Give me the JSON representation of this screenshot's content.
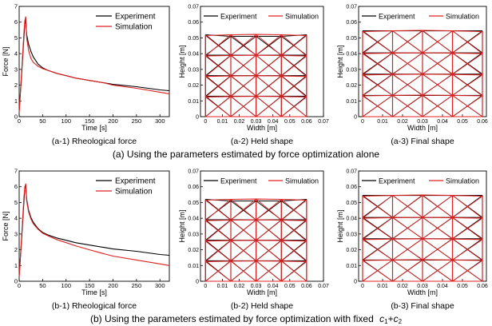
{
  "captions": {
    "row_a": "(a) Using the parameters estimated by force optimization alone",
    "row_b_text": "(b) Using the parameters estimated by force optimization with fixed",
    "row_b_c": "c",
    "row_b_sub1": "1",
    "row_b_plus": "+",
    "row_b_c2": "c",
    "row_b_sub2": "2"
  },
  "chart_data": [
    {
      "id": "a1",
      "type": "line",
      "caption": "(a-1) Rheological force",
      "xlabel": "Time [s]",
      "ylabel": "Force [N]",
      "xlim": [
        0,
        320
      ],
      "ylim": [
        0,
        7
      ],
      "xticks": [
        0,
        50,
        100,
        150,
        200,
        250,
        300
      ],
      "yticks": [
        0,
        1,
        2,
        3,
        4,
        5,
        6,
        7
      ],
      "legend": "top-right",
      "series": [
        {
          "name": "Experiment",
          "color": "#000000",
          "x": [
            0,
            6,
            10,
            12,
            14,
            16,
            20,
            25,
            30,
            40,
            50,
            60,
            80,
            100,
            120,
            150,
            180,
            200,
            250,
            300,
            320
          ],
          "y": [
            0.3,
            3.0,
            5.0,
            5.9,
            6.15,
            5.2,
            4.6,
            4.15,
            3.8,
            3.35,
            3.1,
            2.95,
            2.75,
            2.6,
            2.45,
            2.3,
            2.15,
            2.05,
            1.9,
            1.7,
            1.65
          ]
        },
        {
          "name": "Simulation",
          "color": "#e02020",
          "x": [
            0,
            6,
            10,
            12,
            14,
            16,
            20,
            25,
            30,
            40,
            50,
            60,
            80,
            100,
            120,
            150,
            180,
            200,
            250,
            300,
            320
          ],
          "y": [
            0.3,
            3.2,
            5.3,
            6.1,
            6.35,
            5.0,
            4.2,
            3.7,
            3.45,
            3.2,
            3.05,
            2.95,
            2.75,
            2.6,
            2.45,
            2.3,
            2.15,
            2.0,
            1.8,
            1.55,
            1.45
          ]
        }
      ]
    },
    {
      "id": "a2",
      "type": "line",
      "caption": "(a-2) Held shape",
      "xlabel": "Width [m]",
      "ylabel": "Height [m]",
      "xlim": [
        -0.003,
        0.07
      ],
      "ylim": [
        0,
        0.07
      ],
      "xticks": [
        0,
        0.01,
        0.02,
        0.03,
        0.04,
        0.05,
        0.06,
        0.07
      ],
      "yticks": [
        0,
        0.01,
        0.02,
        0.03,
        0.04,
        0.05,
        0.06,
        0.07
      ],
      "legend": "top",
      "series": [
        {
          "name": "Experiment",
          "color": "#000000"
        },
        {
          "name": "Simulation",
          "color": "#e02020"
        }
      ],
      "mesh": {
        "columns_x": [
          0,
          0.015,
          0.03,
          0.045,
          0.06
        ],
        "experiment_rows_y": [
          [
            0.0,
            0.0,
            0.0,
            0.0,
            0.0
          ],
          [
            0.013,
            0.013,
            0.013,
            0.013,
            0.013
          ],
          [
            0.026,
            0.026,
            0.026,
            0.026,
            0.026
          ],
          [
            0.039,
            0.039,
            0.039,
            0.039,
            0.039
          ],
          [
            0.052,
            0.051,
            0.051,
            0.051,
            0.052
          ]
        ],
        "simulation_rows_y": [
          [
            0.0,
            0.0,
            0.0,
            0.0,
            0.0
          ],
          [
            0.0125,
            0.0128,
            0.0129,
            0.0128,
            0.0125
          ],
          [
            0.0255,
            0.0258,
            0.026,
            0.0258,
            0.0255
          ],
          [
            0.0385,
            0.0388,
            0.039,
            0.0388,
            0.0385
          ],
          [
            0.0515,
            0.052,
            0.0522,
            0.052,
            0.0515
          ]
        ]
      }
    },
    {
      "id": "a3",
      "type": "line",
      "caption": "(a-3) Final shape",
      "xlabel": "Width [m]",
      "ylabel": "Height [m]",
      "xlim": [
        -0.002,
        0.062
      ],
      "ylim": [
        0,
        0.07
      ],
      "xticks": [
        0,
        0.01,
        0.02,
        0.03,
        0.04,
        0.05,
        0.06
      ],
      "yticks": [
        0,
        0.01,
        0.02,
        0.03,
        0.04,
        0.05,
        0.06,
        0.07
      ],
      "legend": "top",
      "series": [
        {
          "name": "Experiment",
          "color": "#000000"
        },
        {
          "name": "Simulation",
          "color": "#e02020"
        }
      ],
      "mesh": {
        "columns_x": [
          0,
          0.015,
          0.03,
          0.045,
          0.06
        ],
        "experiment_rows_y": [
          [
            0.0,
            0.0,
            0.0,
            0.0,
            0.0
          ],
          [
            0.0135,
            0.0135,
            0.0135,
            0.0135,
            0.0135
          ],
          [
            0.027,
            0.027,
            0.027,
            0.027,
            0.027
          ],
          [
            0.0405,
            0.0405,
            0.0405,
            0.0405,
            0.0405
          ],
          [
            0.0545,
            0.0545,
            0.0545,
            0.0545,
            0.0545
          ]
        ],
        "simulation_rows_y": [
          [
            0.0,
            0.0,
            0.0,
            0.0,
            0.0
          ],
          [
            0.0132,
            0.0135,
            0.0137,
            0.0135,
            0.0132
          ],
          [
            0.0265,
            0.0268,
            0.027,
            0.0268,
            0.0265
          ],
          [
            0.04,
            0.0404,
            0.0406,
            0.0404,
            0.04
          ],
          [
            0.054,
            0.0545,
            0.0548,
            0.0545,
            0.054
          ]
        ]
      }
    },
    {
      "id": "b1",
      "type": "line",
      "caption": "(b-1) Rheological force",
      "xlabel": "Time [s]",
      "ylabel": "Force [N]",
      "xlim": [
        0,
        320
      ],
      "ylim": [
        0,
        7
      ],
      "xticks": [
        0,
        50,
        100,
        150,
        200,
        250,
        300
      ],
      "yticks": [
        0,
        1,
        2,
        3,
        4,
        5,
        6,
        7
      ],
      "legend": "top-right",
      "series": [
        {
          "name": "Experiment",
          "color": "#000000",
          "x": [
            0,
            6,
            10,
            12,
            14,
            16,
            20,
            25,
            30,
            40,
            50,
            60,
            80,
            100,
            120,
            150,
            180,
            200,
            250,
            300,
            320
          ],
          "y": [
            0.3,
            3.0,
            5.0,
            5.9,
            6.1,
            5.2,
            4.5,
            4.05,
            3.75,
            3.35,
            3.1,
            2.95,
            2.75,
            2.6,
            2.45,
            2.3,
            2.15,
            2.05,
            1.9,
            1.7,
            1.65
          ]
        },
        {
          "name": "Simulation",
          "color": "#e02020",
          "x": [
            0,
            6,
            10,
            12,
            14,
            16,
            20,
            25,
            30,
            40,
            50,
            60,
            80,
            100,
            120,
            150,
            180,
            200,
            250,
            300,
            320
          ],
          "y": [
            0.3,
            3.2,
            5.3,
            6.0,
            6.2,
            5.1,
            4.4,
            3.95,
            3.65,
            3.3,
            3.05,
            2.9,
            2.65,
            2.45,
            2.25,
            2.0,
            1.75,
            1.6,
            1.35,
            1.1,
            1.0
          ]
        }
      ]
    },
    {
      "id": "b2",
      "type": "line",
      "caption": "(b-2) Held shape",
      "xlabel": "Width [m]",
      "ylabel": "Height [m]",
      "xlim": [
        -0.003,
        0.07
      ],
      "ylim": [
        0,
        0.07
      ],
      "xticks": [
        0,
        0.01,
        0.02,
        0.03,
        0.04,
        0.05,
        0.06,
        0.07
      ],
      "yticks": [
        0,
        0.01,
        0.02,
        0.03,
        0.04,
        0.05,
        0.06,
        0.07
      ],
      "legend": "top",
      "series": [
        {
          "name": "Experiment",
          "color": "#000000"
        },
        {
          "name": "Simulation",
          "color": "#e02020"
        }
      ],
      "mesh": {
        "columns_x": [
          0,
          0.015,
          0.03,
          0.045,
          0.06
        ],
        "experiment_rows_y": [
          [
            0.0,
            0.0,
            0.0,
            0.0,
            0.0
          ],
          [
            0.013,
            0.013,
            0.013,
            0.013,
            0.013
          ],
          [
            0.026,
            0.026,
            0.026,
            0.026,
            0.026
          ],
          [
            0.039,
            0.039,
            0.039,
            0.039,
            0.039
          ],
          [
            0.052,
            0.051,
            0.051,
            0.051,
            0.052
          ]
        ],
        "simulation_rows_y": [
          [
            0.0,
            0.0,
            0.0,
            0.0,
            0.0
          ],
          [
            0.0125,
            0.0128,
            0.0129,
            0.0128,
            0.0125
          ],
          [
            0.0255,
            0.0258,
            0.026,
            0.0258,
            0.0255
          ],
          [
            0.0385,
            0.0388,
            0.039,
            0.0388,
            0.0385
          ],
          [
            0.0515,
            0.052,
            0.0522,
            0.052,
            0.0515
          ]
        ]
      }
    },
    {
      "id": "b3",
      "type": "line",
      "caption": "(b-3) Final shape",
      "xlabel": "Width [m]",
      "ylabel": "Height [m]",
      "xlim": [
        -0.002,
        0.062
      ],
      "ylim": [
        0,
        0.07
      ],
      "xticks": [
        0,
        0.01,
        0.02,
        0.03,
        0.04,
        0.05,
        0.06
      ],
      "yticks": [
        0,
        0.01,
        0.02,
        0.03,
        0.04,
        0.05,
        0.06,
        0.07
      ],
      "legend": "top",
      "series": [
        {
          "name": "Experiment",
          "color": "#000000"
        },
        {
          "name": "Simulation",
          "color": "#e02020"
        }
      ],
      "mesh": {
        "columns_x": [
          0,
          0.015,
          0.03,
          0.045,
          0.06
        ],
        "experiment_rows_y": [
          [
            0.0,
            0.0,
            0.0,
            0.0,
            0.0
          ],
          [
            0.0135,
            0.0135,
            0.0135,
            0.0135,
            0.0135
          ],
          [
            0.027,
            0.027,
            0.027,
            0.027,
            0.027
          ],
          [
            0.0405,
            0.0405,
            0.0405,
            0.0405,
            0.0405
          ],
          [
            0.0545,
            0.0545,
            0.0545,
            0.0545,
            0.0545
          ]
        ],
        "simulation_rows_y": [
          [
            0.0,
            0.0,
            0.0,
            0.0,
            0.0
          ],
          [
            0.0132,
            0.0135,
            0.0137,
            0.0135,
            0.0132
          ],
          [
            0.0265,
            0.0268,
            0.027,
            0.0268,
            0.0265
          ],
          [
            0.04,
            0.0404,
            0.0406,
            0.0404,
            0.04
          ],
          [
            0.054,
            0.0545,
            0.0548,
            0.0545,
            0.054
          ]
        ]
      }
    }
  ]
}
